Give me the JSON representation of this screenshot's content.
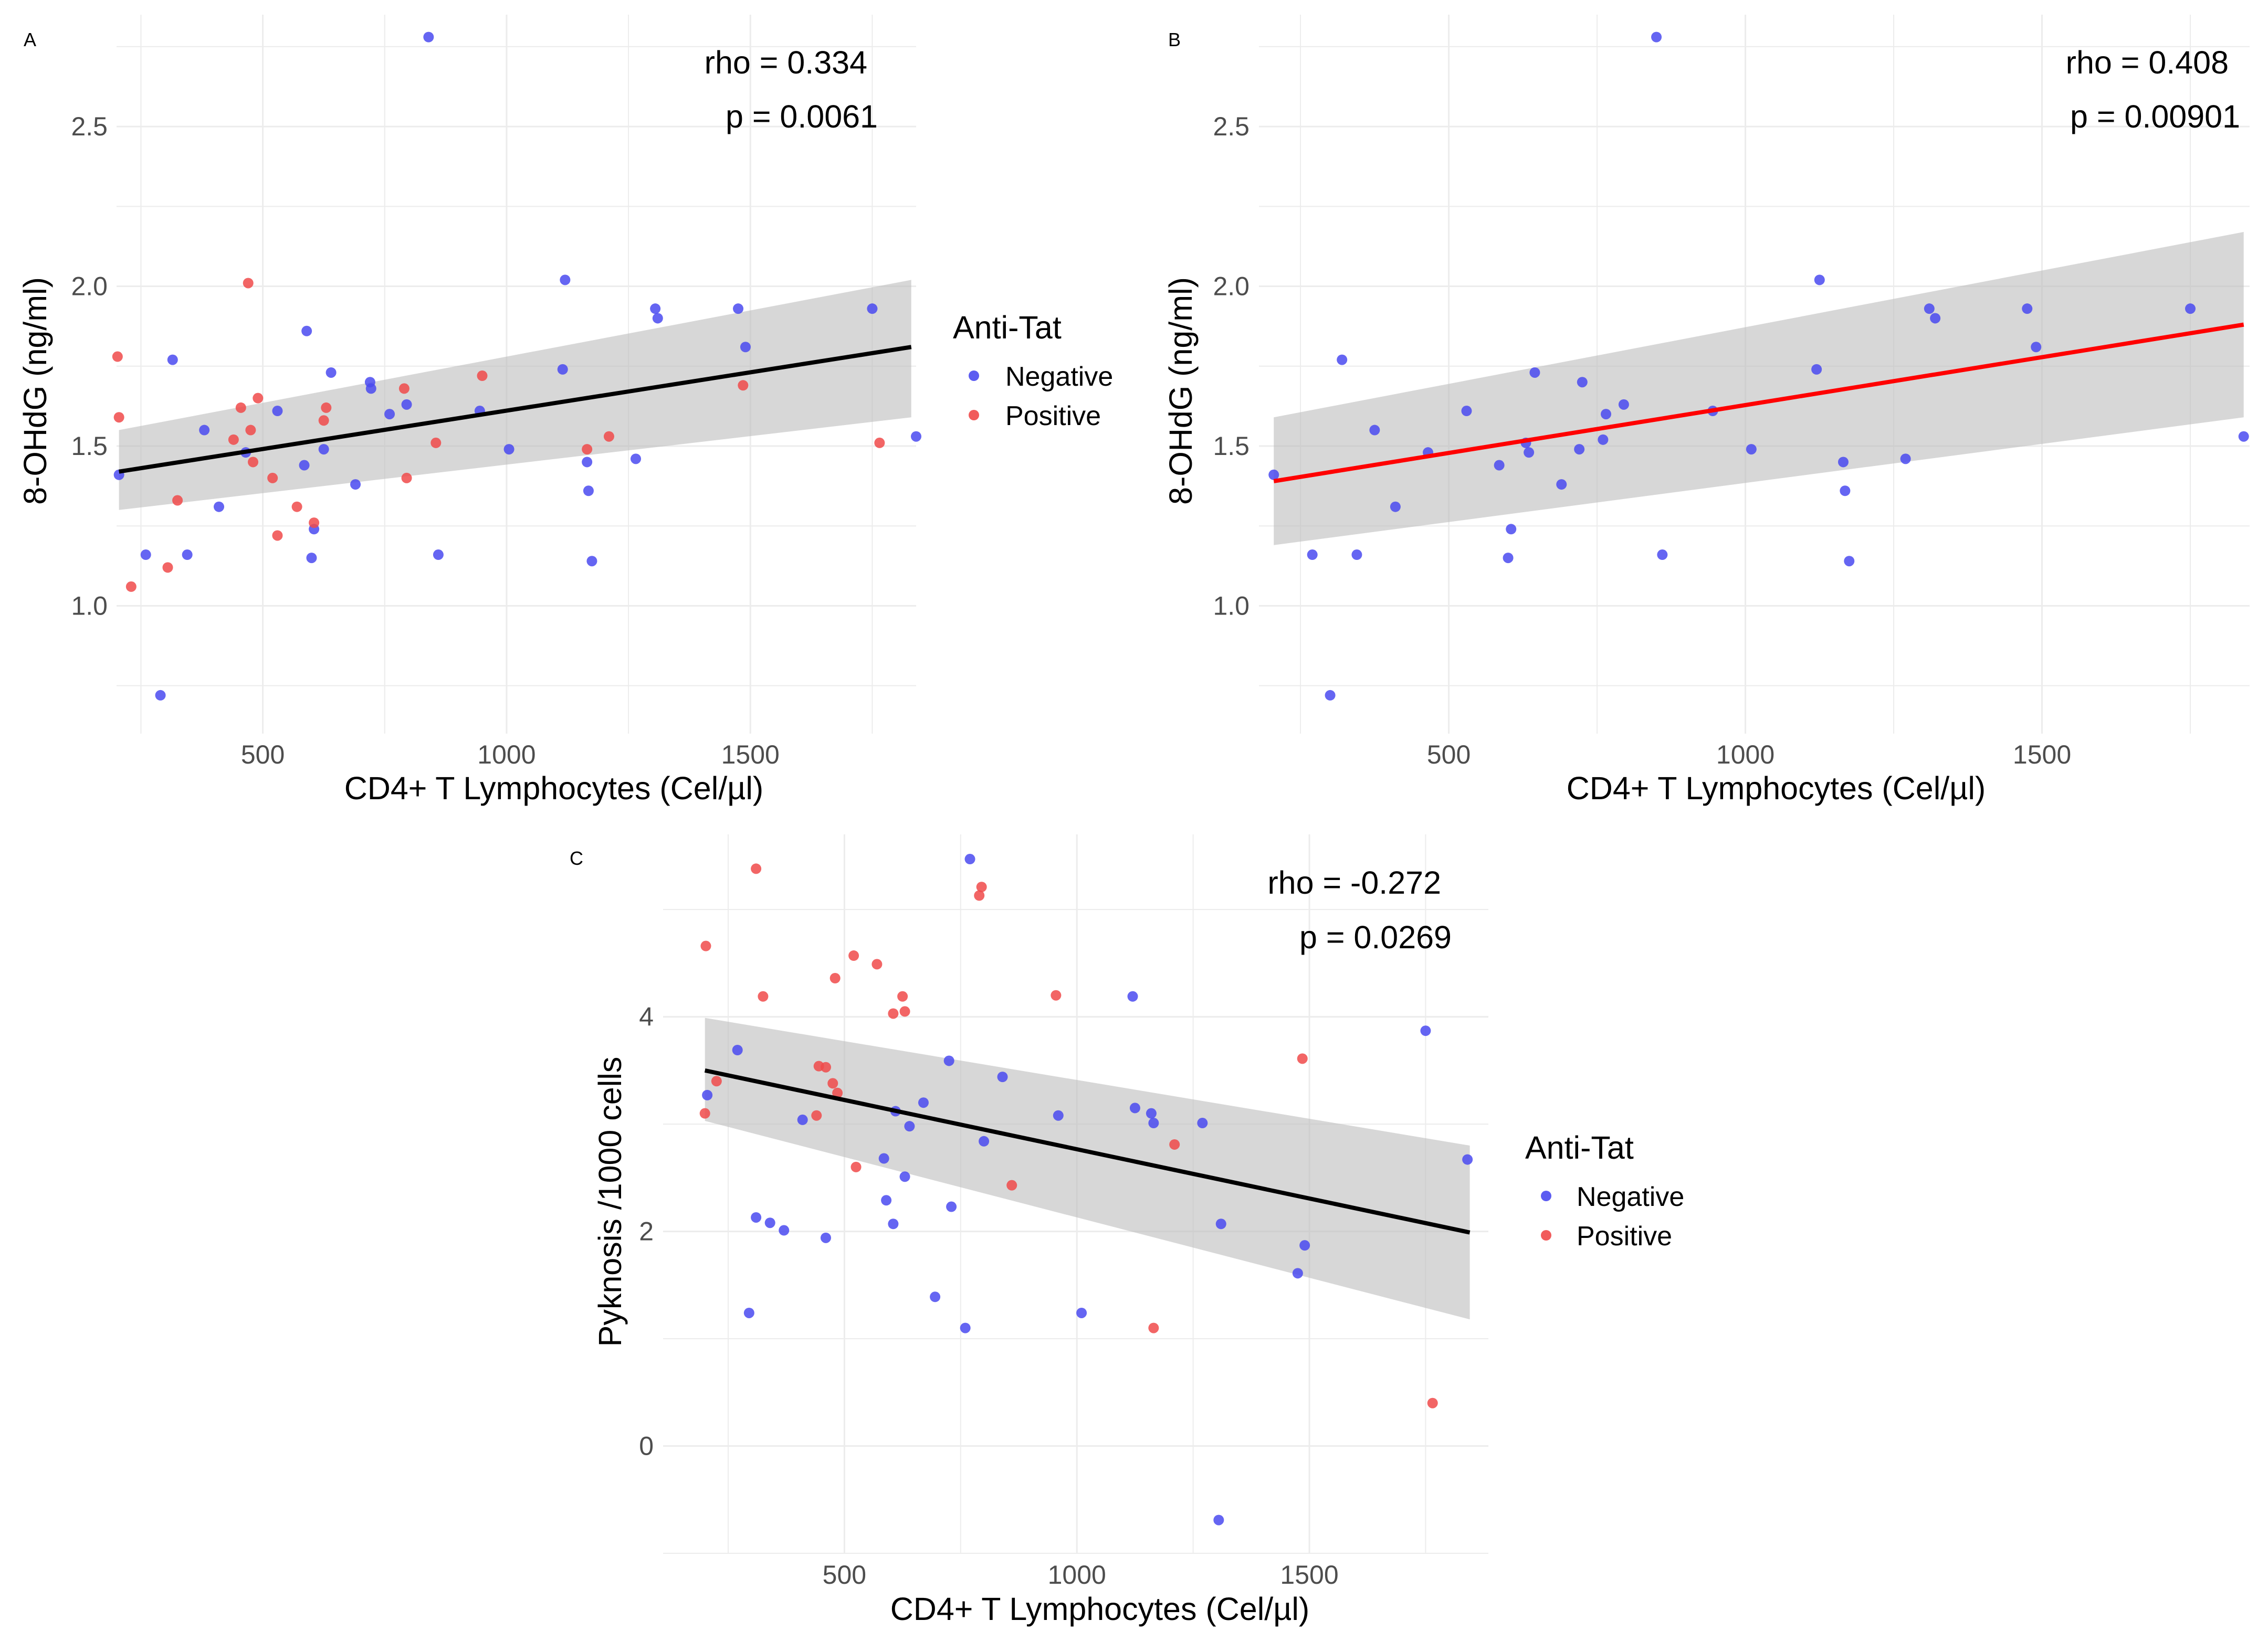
{
  "colors": {
    "negative": "#4a4af0",
    "positive": "#f04a4a",
    "fit_black": "#000000",
    "fit_red": "#ff0000",
    "band": "#bdbdbd",
    "grid": "#ececec"
  },
  "legend": {
    "title": "Anti-Tat",
    "negative": "Negative",
    "positive": "Positive"
  },
  "chart_data": [
    {
      "panel": "A",
      "type": "scatter",
      "xlabel": "CD4+ T Lymphocytes (Cel/µl)",
      "ylabel": "8-OHdG (ng/ml)",
      "xlim": [
        200,
        1840
      ],
      "ylim": [
        0.6,
        2.85
      ],
      "xticks": [
        500,
        1000,
        1500
      ],
      "xticklabels": [
        "500",
        "1000",
        "1500"
      ],
      "yticks": [
        1.0,
        1.5,
        2.0,
        2.5
      ],
      "yticklabels": [
        "1.0",
        "1.5",
        "2.0",
        "2.5"
      ],
      "stat_rho": "rho = 0.334",
      "stat_p": "p = 0.0061",
      "legend": true,
      "fit": {
        "color": "black",
        "x": [
          205,
          1830
        ],
        "y": [
          1.42,
          1.81
        ],
        "band_lower": [
          1.3,
          1.59
        ],
        "band_upper": [
          1.55,
          2.02
        ]
      },
      "series": [
        {
          "name": "Negative",
          "x": [
            205,
            260,
            290,
            315,
            345,
            380,
            410,
            465,
            530,
            585,
            590,
            600,
            605,
            625,
            640,
            690,
            720,
            722,
            760,
            795,
            840,
            860,
            945,
            1005,
            1115,
            1120,
            1165,
            1168,
            1175,
            1265,
            1305,
            1310,
            1475,
            1490,
            1750,
            1840
          ],
          "y": [
            1.41,
            1.16,
            0.72,
            1.77,
            1.16,
            1.55,
            1.31,
            1.48,
            1.61,
            1.44,
            1.86,
            1.15,
            1.24,
            1.49,
            1.73,
            1.38,
            1.7,
            1.68,
            1.6,
            1.63,
            2.78,
            1.16,
            1.61,
            1.49,
            1.74,
            2.02,
            1.45,
            1.36,
            1.14,
            1.46,
            1.93,
            1.9,
            1.93,
            1.81,
            1.93,
            1.53
          ]
        },
        {
          "name": "Positive",
          "x": [
            202,
            205,
            230,
            305,
            325,
            440,
            455,
            470,
            475,
            480,
            490,
            520,
            530,
            570,
            605,
            625,
            630,
            790,
            795,
            855,
            950,
            1165,
            1210,
            1485,
            1765
          ],
          "y": [
            1.78,
            1.59,
            1.06,
            1.12,
            1.33,
            1.52,
            1.62,
            2.01,
            1.55,
            1.45,
            1.65,
            1.4,
            1.22,
            1.31,
            1.26,
            1.58,
            1.62,
            1.68,
            1.4,
            1.51,
            1.72,
            1.49,
            1.53,
            1.69,
            1.51
          ]
        }
      ]
    },
    {
      "panel": "B",
      "type": "scatter",
      "xlabel": "CD4+ T Lymphocytes (Cel/µl)",
      "ylabel": "8-OHdG (ng/ml)",
      "xlim": [
        180,
        1850
      ],
      "ylim": [
        0.6,
        2.85
      ],
      "xticks": [
        500,
        1000,
        1500
      ],
      "xticklabels": [
        "500",
        "1000",
        "1500"
      ],
      "yticks": [
        1.0,
        1.5,
        2.0,
        2.5
      ],
      "yticklabels": [
        "1.0",
        "1.5",
        "2.0",
        "2.5"
      ],
      "stat_rho": "rho = 0.408",
      "stat_p": "p = 0.00901",
      "legend": false,
      "fit": {
        "color": "red",
        "x": [
          205,
          1840
        ],
        "y": [
          1.39,
          1.88
        ],
        "band_lower": [
          1.19,
          1.59
        ],
        "band_upper": [
          1.59,
          2.17
        ]
      },
      "series": [
        {
          "name": "Negative",
          "x": [
            205,
            270,
            300,
            320,
            345,
            375,
            410,
            465,
            530,
            585,
            600,
            605,
            630,
            635,
            645,
            690,
            720,
            725,
            760,
            765,
            795,
            850,
            860,
            945,
            1010,
            1120,
            1125,
            1165,
            1168,
            1175,
            1270,
            1310,
            1320,
            1475,
            1490,
            1750,
            1840
          ],
          "y": [
            1.41,
            1.16,
            0.72,
            1.77,
            1.16,
            1.55,
            1.31,
            1.48,
            1.61,
            1.44,
            1.15,
            1.24,
            1.51,
            1.48,
            1.73,
            1.38,
            1.49,
            1.7,
            1.52,
            1.6,
            1.63,
            2.78,
            1.16,
            1.61,
            1.49,
            1.74,
            2.02,
            1.45,
            1.36,
            1.14,
            1.46,
            1.93,
            1.9,
            1.93,
            1.81,
            1.93,
            1.53
          ]
        }
      ]
    },
    {
      "panel": "C",
      "type": "scatter",
      "xlabel": "CD4+ T Lymphocytes (Cel/µl)",
      "ylabel": "Pyknosis /1000 cells",
      "xlim": [
        110,
        1885
      ],
      "ylim": [
        -1.0,
        5.7
      ],
      "xticks": [
        500,
        1000,
        1500
      ],
      "xticklabels": [
        "500",
        "1000",
        "1500"
      ],
      "yticks": [
        0,
        2,
        4
      ],
      "yticklabels": [
        "0",
        "2",
        "4"
      ],
      "stat_rho": "rho = -0.272",
      "stat_p": "p = 0.0269",
      "legend": true,
      "fit": {
        "color": "black",
        "x": [
          200,
          1845
        ],
        "y": [
          3.5,
          1.99
        ],
        "band_lower": [
          3.03,
          1.18
        ],
        "band_upper": [
          3.99,
          2.8
        ]
      },
      "series": [
        {
          "name": "Negative",
          "x": [
            205,
            270,
            295,
            310,
            340,
            370,
            410,
            460,
            585,
            590,
            605,
            610,
            630,
            640,
            670,
            695,
            725,
            730,
            760,
            770,
            800,
            840,
            960,
            1010,
            1120,
            1125,
            1160,
            1165,
            1270,
            1305,
            1310,
            1475,
            1490,
            1750,
            1840
          ],
          "y": [
            3.27,
            3.69,
            1.24,
            2.13,
            2.08,
            2.01,
            3.04,
            1.94,
            2.68,
            2.29,
            2.07,
            3.12,
            2.51,
            2.98,
            3.2,
            1.39,
            3.59,
            2.23,
            1.1,
            5.47,
            2.84,
            3.44,
            3.08,
            1.24,
            4.19,
            3.15,
            3.1,
            3.01,
            3.01,
            -0.69,
            2.07,
            1.61,
            1.87,
            3.87,
            2.67
          ]
        },
        {
          "name": "Positive",
          "x": [
            200,
            202,
            225,
            310,
            325,
            440,
            445,
            460,
            475,
            480,
            485,
            520,
            525,
            570,
            605,
            625,
            630,
            790,
            795,
            860,
            955,
            1165,
            1210,
            1485,
            1765
          ],
          "y": [
            3.1,
            4.66,
            3.4,
            5.38,
            4.19,
            3.08,
            3.54,
            3.53,
            3.38,
            4.36,
            3.29,
            4.57,
            2.6,
            4.49,
            4.03,
            4.19,
            4.05,
            5.13,
            5.21,
            2.43,
            4.2,
            1.1,
            2.81,
            3.61,
            0.4
          ]
        }
      ]
    }
  ]
}
